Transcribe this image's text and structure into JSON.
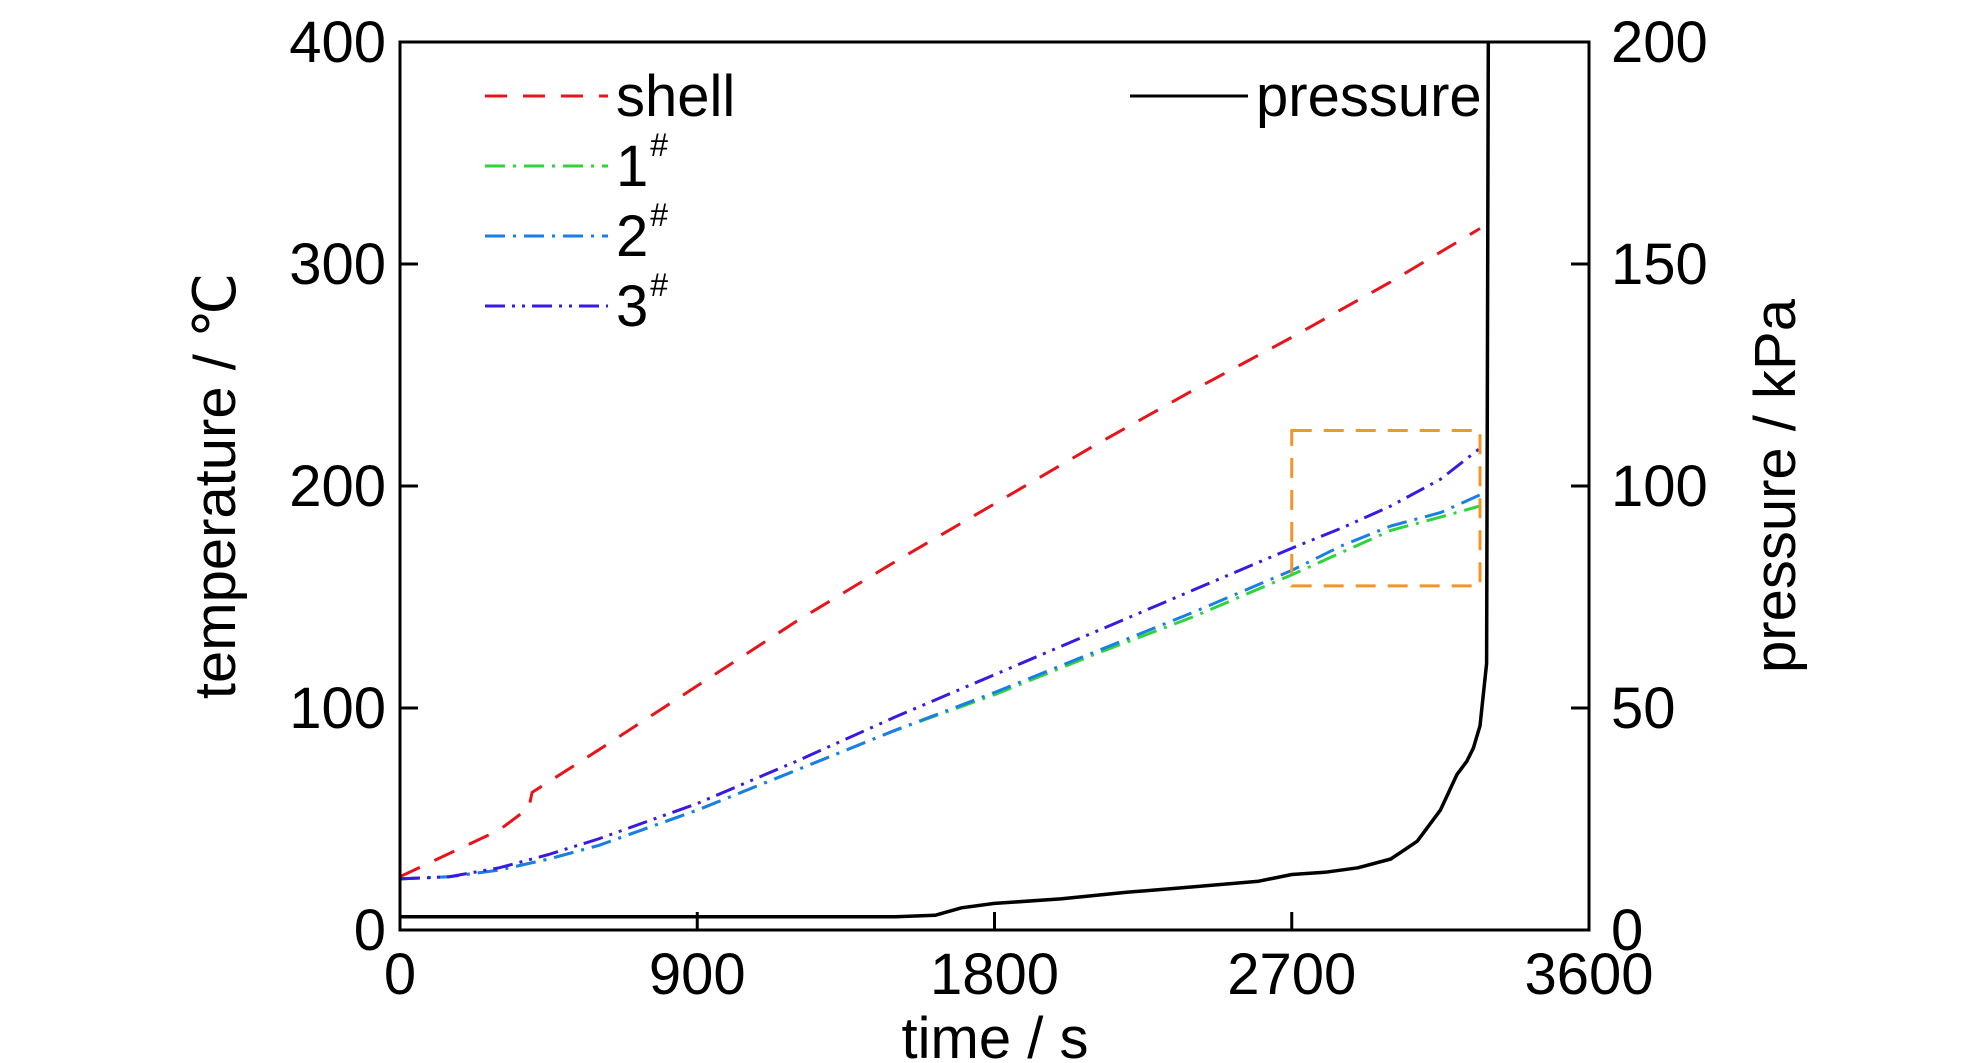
{
  "chart_data": {
    "type": "line",
    "x_axis": {
      "label": "time / s",
      "range": [
        0,
        3600
      ],
      "ticks": [
        0,
        900,
        1800,
        2700,
        3600
      ],
      "tick_labels": [
        "0",
        "900",
        "1800",
        "2700",
        "3600"
      ]
    },
    "y_axis_left": {
      "label": "temperature / ℃",
      "range": [
        0,
        400
      ],
      "ticks": [
        0,
        100,
        200,
        300,
        400
      ],
      "tick_labels": [
        "0",
        "100",
        "200",
        "300",
        "400"
      ]
    },
    "y_axis_right": {
      "label": "pressure / kPa",
      "range": [
        0,
        200
      ],
      "ticks": [
        0,
        50,
        100,
        150,
        200
      ],
      "tick_labels": [
        "0",
        "50",
        "100",
        "150",
        "200"
      ]
    },
    "grid": false,
    "legend_placement": "top",
    "series": [
      {
        "name": "shell",
        "axis": "left",
        "color": "#e8141c",
        "dash": "dashed",
        "points": [
          [
            0,
            24
          ],
          [
            300,
            45
          ],
          [
            390,
            55
          ],
          [
            400,
            62
          ],
          [
            600,
            81
          ],
          [
            900,
            110
          ],
          [
            1200,
            139
          ],
          [
            1500,
            166
          ],
          [
            1800,
            192
          ],
          [
            2100,
            218
          ],
          [
            2400,
            243
          ],
          [
            2700,
            267
          ],
          [
            3000,
            292
          ],
          [
            3270,
            316
          ]
        ]
      },
      {
        "name": "1",
        "sup": "#",
        "axis": "left",
        "color": "#2dd43a",
        "dash": "dashdot",
        "points": [
          [
            0,
            23
          ],
          [
            150,
            24
          ],
          [
            300,
            27
          ],
          [
            450,
            32
          ],
          [
            600,
            38
          ],
          [
            900,
            54
          ],
          [
            1200,
            72
          ],
          [
            1500,
            90
          ],
          [
            1800,
            106
          ],
          [
            2100,
            124
          ],
          [
            2400,
            141
          ],
          [
            2700,
            160
          ],
          [
            2850,
            170
          ],
          [
            3000,
            180
          ],
          [
            3150,
            186
          ],
          [
            3270,
            191
          ]
        ]
      },
      {
        "name": "2",
        "sup": "#",
        "axis": "left",
        "color": "#1a7ee6",
        "dash": "dashdot",
        "points": [
          [
            0,
            23
          ],
          [
            150,
            24
          ],
          [
            300,
            27
          ],
          [
            450,
            32
          ],
          [
            600,
            38
          ],
          [
            900,
            54
          ],
          [
            1200,
            72
          ],
          [
            1500,
            90
          ],
          [
            1800,
            107
          ],
          [
            2100,
            125
          ],
          [
            2400,
            143
          ],
          [
            2700,
            162
          ],
          [
            2850,
            173
          ],
          [
            3000,
            182
          ],
          [
            3150,
            188
          ],
          [
            3270,
            196
          ]
        ]
      },
      {
        "name": "3",
        "sup": "#",
        "axis": "left",
        "color": "#3a1ae0",
        "dash": "dashdotdot",
        "points": [
          [
            0,
            23
          ],
          [
            150,
            24
          ],
          [
            300,
            28
          ],
          [
            450,
            34
          ],
          [
            600,
            41
          ],
          [
            900,
            57
          ],
          [
            1200,
            76
          ],
          [
            1500,
            96
          ],
          [
            1800,
            115
          ],
          [
            2100,
            134
          ],
          [
            2400,
            153
          ],
          [
            2700,
            172
          ],
          [
            2850,
            181
          ],
          [
            3000,
            191
          ],
          [
            3150,
            203
          ],
          [
            3270,
            217
          ]
        ]
      },
      {
        "name": "pressure",
        "axis": "right",
        "color": "#000000",
        "dash": "solid",
        "points": [
          [
            0,
            3
          ],
          [
            1500,
            3
          ],
          [
            1620,
            3.3
          ],
          [
            1700,
            5
          ],
          [
            1800,
            6
          ],
          [
            2000,
            7
          ],
          [
            2200,
            8.5
          ],
          [
            2400,
            9.7
          ],
          [
            2600,
            11
          ],
          [
            2700,
            12.5
          ],
          [
            2800,
            13
          ],
          [
            2900,
            14
          ],
          [
            3000,
            16
          ],
          [
            3080,
            20
          ],
          [
            3150,
            27
          ],
          [
            3200,
            35
          ],
          [
            3230,
            38
          ],
          [
            3250,
            41
          ],
          [
            3270,
            46
          ],
          [
            3290,
            60
          ],
          [
            3295,
            200
          ]
        ]
      }
    ],
    "annotations": [
      {
        "type": "rectangle",
        "style": "dashed",
        "color": "#f0962a",
        "x_range": [
          2700,
          3270
        ],
        "y_range": [
          155,
          225
        ],
        "axis": "left"
      }
    ]
  }
}
